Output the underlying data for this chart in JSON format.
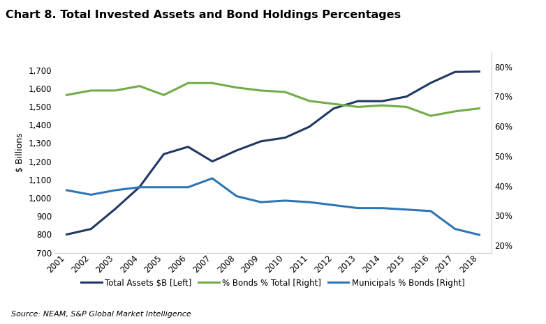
{
  "title": "Chart 8. Total Invested Assets and Bond Holdings Percentages",
  "source": "Source: NEAM, S&P Global Market Intelligence",
  "years": [
    2001,
    2002,
    2003,
    2004,
    2005,
    2006,
    2007,
    2008,
    2009,
    2010,
    2011,
    2012,
    2013,
    2014,
    2015,
    2016,
    2017,
    2018
  ],
  "total_assets": [
    800,
    830,
    940,
    1060,
    1240,
    1280,
    1200,
    1260,
    1310,
    1330,
    1390,
    1490,
    1530,
    1530,
    1555,
    1630,
    1690,
    1692
  ],
  "pct_bonds_total": [
    70.5,
    72.0,
    72.0,
    73.5,
    70.5,
    74.5,
    74.5,
    73.0,
    72.0,
    71.5,
    68.5,
    67.5,
    66.5,
    67.0,
    66.5,
    63.5,
    65.0,
    66.0
  ],
  "municipals_pct_bonds": [
    38.5,
    37.0,
    38.5,
    39.5,
    39.5,
    39.5,
    42.5,
    36.5,
    34.5,
    35.0,
    34.5,
    33.5,
    32.5,
    32.5,
    32.0,
    31.5,
    25.5,
    23.5
  ],
  "total_assets_color": "#1f3864",
  "pct_bonds_color": "#70ad47",
  "municipals_color": "#2e75b6",
  "left_ylim": [
    700,
    1800
  ],
  "right_ylim": [
    17.5,
    85
  ],
  "left_yticks": [
    700,
    800,
    900,
    1000,
    1100,
    1200,
    1300,
    1400,
    1500,
    1600,
    1700
  ],
  "right_yticks": [
    20,
    30,
    40,
    50,
    60,
    70,
    80
  ],
  "grid_color": "#ffffff",
  "background_color": "#ffffff",
  "legend_labels": [
    "Total Assets $B [Left]",
    "% Bonds % Total [Right]",
    "Municipals % Bonds [Right]"
  ]
}
